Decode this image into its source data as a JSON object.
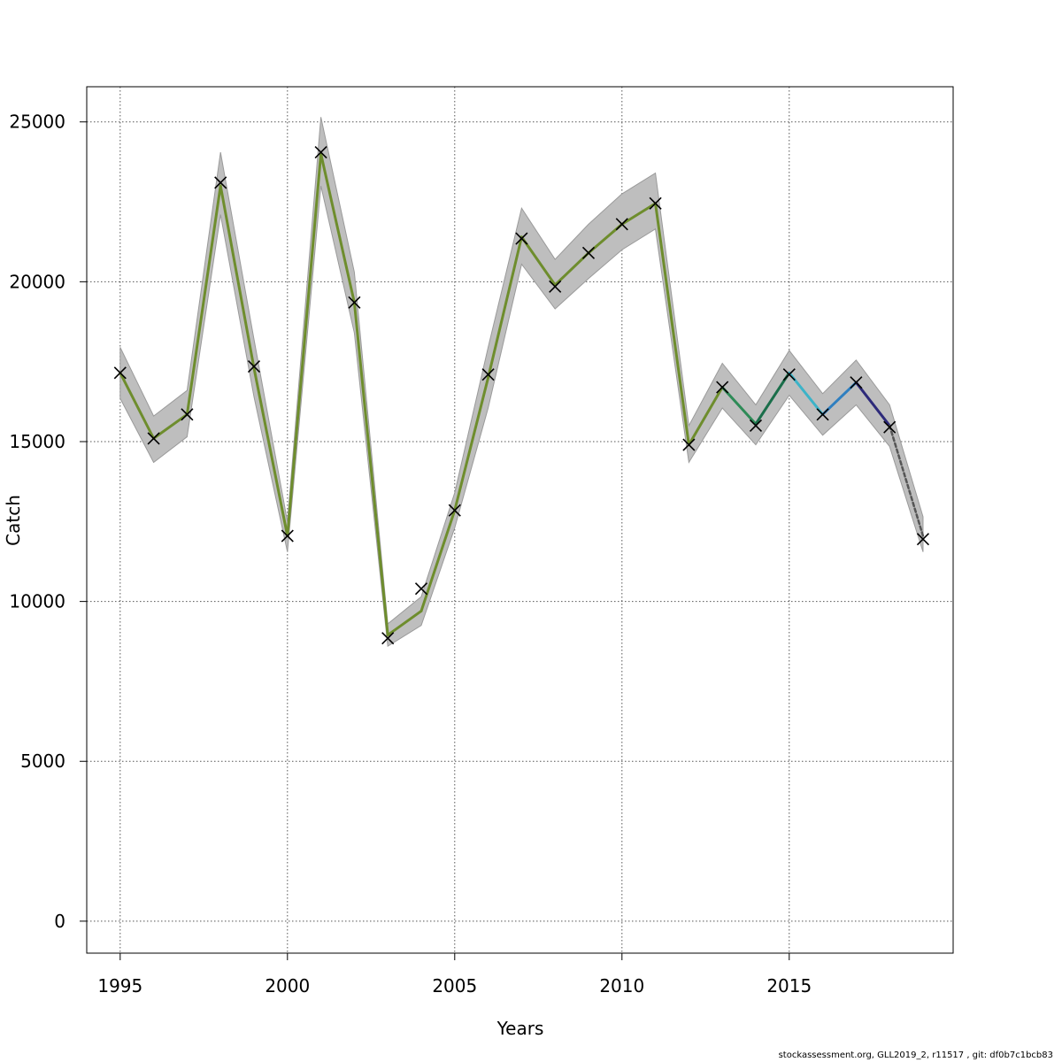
{
  "chart_data": {
    "type": "line",
    "title": "",
    "xlabel": "Years",
    "ylabel": "Catch",
    "xlim": [
      1994.0,
      2019.9
    ],
    "ylim": [
      -1000,
      26100
    ],
    "x_ticks": [
      1995,
      2000,
      2005,
      2010,
      2015
    ],
    "y_ticks": [
      0,
      5000,
      10000,
      15000,
      20000,
      25000
    ],
    "grid": true,
    "observed": {
      "marker": "x",
      "x": [
        1995,
        1996,
        1997,
        1998,
        1999,
        2000,
        2001,
        2002,
        2003,
        2004,
        2005,
        2006,
        2007,
        2008,
        2009,
        2010,
        2011,
        2012,
        2013,
        2014,
        2015,
        2016,
        2017,
        2018,
        2019
      ],
      "y": [
        17150,
        15100,
        15850,
        23100,
        17350,
        12050,
        24050,
        19350,
        8850,
        10400,
        12850,
        17100,
        21350,
        19850,
        20900,
        21800,
        22450,
        14900,
        16700,
        15500,
        17100,
        15850,
        16850,
        15450,
        11950
      ]
    },
    "fitted": {
      "x": [
        1995,
        1996,
        1997,
        1998,
        1999,
        2000,
        2001,
        2002,
        2003,
        2004,
        2005,
        2006,
        2007,
        2008,
        2009,
        2010,
        2011,
        2012,
        2013,
        2014,
        2015,
        2016,
        2017,
        2018,
        2019
      ],
      "y": [
        17150,
        15100,
        15850,
        23000,
        17300,
        12050,
        24000,
        19350,
        8950,
        9700,
        12850,
        17000,
        21400,
        19900,
        20900,
        21800,
        22450,
        14900,
        16700,
        15550,
        17150,
        15850,
        16850,
        15500,
        12050
      ],
      "lower": [
        16350,
        14350,
        15150,
        22100,
        16400,
        11550,
        23000,
        18400,
        8600,
        9250,
        12300,
        16050,
        20550,
        19150,
        20100,
        21000,
        21650,
        14350,
        16050,
        14900,
        16450,
        15200,
        16150,
        14850,
        11550
      ],
      "upper": [
        17950,
        15800,
        16600,
        24050,
        18200,
        12500,
        25150,
        20300,
        9300,
        10150,
        13400,
        17950,
        22300,
        20700,
        21800,
        22750,
        23400,
        15500,
        17450,
        16150,
        17850,
        16500,
        17550,
        16150,
        12650
      ]
    },
    "segment_colors": [
      "#6e8d2d",
      "#6e8d2d",
      "#6e8d2d",
      "#6e8d2d",
      "#6e8d2d",
      "#6e8d2d",
      "#6e8d2d",
      "#6e8d2d",
      "#6e8d2d",
      "#6e8d2d",
      "#6e8d2d",
      "#6e8d2d",
      "#6e8d2d",
      "#6e8d2d",
      "#6e8d2d",
      "#6e8d2d",
      "#6e8d2d",
      "#6e8d2d",
      "#2e8b57",
      "#1a6e4a",
      "#3cb3c8",
      "#2f7fc0",
      "#2d2a7a",
      "#555555"
    ],
    "band_color": "#bebebe",
    "grid_color": "#555555"
  },
  "footer": {
    "text": "stockassessment.org, GLL2019_2, r11517 , git: df0b7c1bcb83"
  }
}
